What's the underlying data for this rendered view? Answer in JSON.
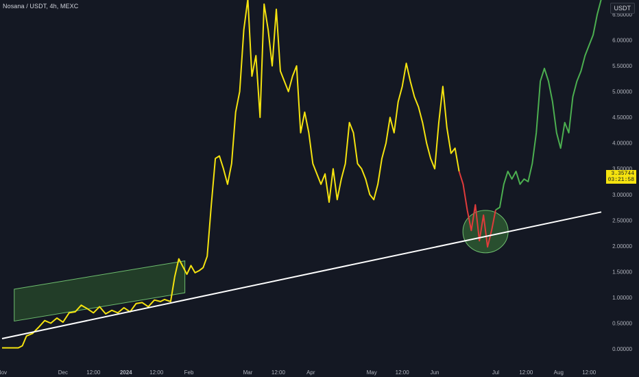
{
  "header": {
    "symbol_title": "Nosana / USDT, 4h, MEXC",
    "currency": "USDT"
  },
  "price_label": {
    "price": "3.35744",
    "countdown": "03:21:58"
  },
  "colors": {
    "background": "#141823",
    "axis_text": "#b2b5be",
    "series_history": "#f5e30f",
    "series_drop": "#e03b3b",
    "series_recovery": "#4caf50",
    "trendline": "#ffffff",
    "channel_fill": "#2e5d2e",
    "channel_stroke": "#6fbf6f",
    "circle_fill": "#3a7d3a",
    "circle_stroke": "#6fbf6f"
  },
  "chart_data": {
    "type": "line",
    "title": "Nosana / USDT, 4h, MEXC",
    "xlabel": "",
    "ylabel": "",
    "ylim": [
      -0.1,
      6.75
    ],
    "y_ticks": [
      "0.00000",
      "0.50000",
      "1.00000",
      "1.50000",
      "2.00000",
      "2.50000",
      "3.00000",
      "3.50000",
      "4.00000",
      "4.50000",
      "5.00000",
      "5.50000",
      "6.00000",
      "6.50000"
    ],
    "x_ticks": [
      {
        "label": "Nov",
        "t": 0
      },
      {
        "label": "Dec",
        "t": 30
      },
      {
        "label": "12:00",
        "t": 45
      },
      {
        "label": "2024",
        "t": 61
      },
      {
        "label": "12:00",
        "t": 76
      },
      {
        "label": "Feb",
        "t": 92
      },
      {
        "label": "Mar",
        "t": 121
      },
      {
        "label": "12:00",
        "t": 136
      },
      {
        "label": "Apr",
        "t": 152
      },
      {
        "label": "May",
        "t": 182
      },
      {
        "label": "12:00",
        "t": 197
      },
      {
        "label": "Jun",
        "t": 213
      },
      {
        "label": "Jul",
        "t": 243
      },
      {
        "label": "12:00",
        "t": 258
      },
      {
        "label": "Aug",
        "t": 274
      },
      {
        "label": "12:00",
        "t": 289
      }
    ],
    "xlim": [
      0,
      306
    ],
    "grid": false,
    "series": [
      {
        "points": [
          [
            0,
            0.02
          ],
          [
            8,
            0.02
          ],
          [
            10,
            0.06
          ],
          [
            12,
            0.25
          ],
          [
            15,
            0.3
          ],
          [
            18,
            0.42
          ],
          [
            21,
            0.55
          ],
          [
            24,
            0.5
          ],
          [
            27,
            0.6
          ],
          [
            30,
            0.52
          ],
          [
            33,
            0.7
          ],
          [
            36,
            0.72
          ],
          [
            39,
            0.85
          ],
          [
            42,
            0.78
          ],
          [
            45,
            0.7
          ],
          [
            48,
            0.82
          ],
          [
            51,
            0.68
          ],
          [
            54,
            0.75
          ],
          [
            57,
            0.7
          ],
          [
            60,
            0.8
          ],
          [
            63,
            0.72
          ],
          [
            66,
            0.88
          ],
          [
            69,
            0.9
          ],
          [
            72,
            0.82
          ],
          [
            75,
            0.95
          ],
          [
            78,
            0.92
          ],
          [
            80,
            0.96
          ],
          [
            83,
            0.92
          ],
          [
            85,
            1.4
          ],
          [
            87,
            1.75
          ],
          [
            89,
            1.6
          ],
          [
            91,
            1.45
          ],
          [
            93,
            1.62
          ],
          [
            95,
            1.48
          ],
          [
            97,
            1.52
          ],
          [
            99,
            1.58
          ],
          [
            101,
            1.8
          ],
          [
            103,
            2.8
          ],
          [
            105,
            3.7
          ],
          [
            107,
            3.75
          ],
          [
            109,
            3.5
          ],
          [
            111,
            3.2
          ],
          [
            113,
            3.6
          ],
          [
            115,
            4.6
          ],
          [
            117,
            5.0
          ],
          [
            119,
            6.2
          ],
          [
            121,
            6.8
          ],
          [
            123,
            5.3
          ],
          [
            125,
            5.7
          ],
          [
            127,
            4.5
          ],
          [
            129,
            6.7
          ],
          [
            131,
            6.2
          ],
          [
            133,
            5.5
          ],
          [
            135,
            6.6
          ],
          [
            137,
            5.4
          ],
          [
            139,
            5.2
          ],
          [
            141,
            5.0
          ],
          [
            143,
            5.3
          ],
          [
            145,
            5.5
          ],
          [
            147,
            4.2
          ],
          [
            149,
            4.6
          ],
          [
            151,
            4.2
          ],
          [
            153,
            3.6
          ],
          [
            155,
            3.4
          ],
          [
            157,
            3.2
          ],
          [
            159,
            3.4
          ],
          [
            161,
            2.85
          ],
          [
            163,
            3.5
          ],
          [
            165,
            2.9
          ],
          [
            167,
            3.3
          ],
          [
            169,
            3.6
          ],
          [
            171,
            4.4
          ],
          [
            173,
            4.2
          ],
          [
            175,
            3.6
          ],
          [
            177,
            3.5
          ],
          [
            179,
            3.3
          ],
          [
            181,
            3.0
          ],
          [
            183,
            2.9
          ],
          [
            185,
            3.2
          ],
          [
            187,
            3.7
          ],
          [
            189,
            4.0
          ],
          [
            191,
            4.5
          ],
          [
            193,
            4.2
          ],
          [
            195,
            4.8
          ],
          [
            197,
            5.1
          ],
          [
            199,
            5.55
          ],
          [
            201,
            5.2
          ],
          [
            203,
            4.9
          ],
          [
            205,
            4.7
          ],
          [
            207,
            4.4
          ],
          [
            209,
            4.0
          ],
          [
            211,
            3.7
          ],
          [
            213,
            3.5
          ],
          [
            215,
            4.4
          ],
          [
            217,
            5.1
          ],
          [
            219,
            4.3
          ],
          [
            221,
            3.8
          ],
          [
            223,
            3.9
          ],
          [
            225,
            3.45
          ]
        ]
      },
      {
        "points": [
          [
            225,
            3.45
          ],
          [
            227,
            3.2
          ],
          [
            229,
            2.7
          ],
          [
            231,
            2.3
          ],
          [
            233,
            2.8
          ],
          [
            235,
            2.1
          ],
          [
            237,
            2.6
          ],
          [
            239,
            1.98
          ],
          [
            241,
            2.3
          ],
          [
            243,
            2.7
          ]
        ]
      },
      {
        "points": [
          [
            243,
            2.7
          ],
          [
            245,
            2.75
          ],
          [
            247,
            3.2
          ],
          [
            249,
            3.45
          ],
          [
            251,
            3.3
          ],
          [
            253,
            3.45
          ],
          [
            255,
            3.2
          ],
          [
            257,
            3.3
          ],
          [
            259,
            3.25
          ],
          [
            261,
            3.6
          ],
          [
            263,
            4.2
          ],
          [
            265,
            5.2
          ],
          [
            267,
            5.45
          ],
          [
            269,
            5.2
          ],
          [
            271,
            4.8
          ],
          [
            273,
            4.2
          ],
          [
            275,
            3.9
          ],
          [
            277,
            4.4
          ],
          [
            279,
            4.2
          ],
          [
            281,
            4.9
          ],
          [
            283,
            5.2
          ],
          [
            285,
            5.4
          ],
          [
            287,
            5.7
          ],
          [
            289,
            5.9
          ],
          [
            291,
            6.1
          ],
          [
            293,
            6.5
          ],
          [
            295,
            6.8
          ]
        ]
      }
    ],
    "trendline": {
      "from": [
        0,
        0.2
      ],
      "to": [
        295,
        2.66
      ]
    },
    "annotations": [
      {
        "type": "channel",
        "from": [
          6,
          0.9
        ],
        "to": [
          90,
          1.4
        ],
        "height": 0.62
      },
      {
        "type": "ellipse",
        "center": [
          238,
          2.28
        ]
      }
    ],
    "legend": "none"
  }
}
